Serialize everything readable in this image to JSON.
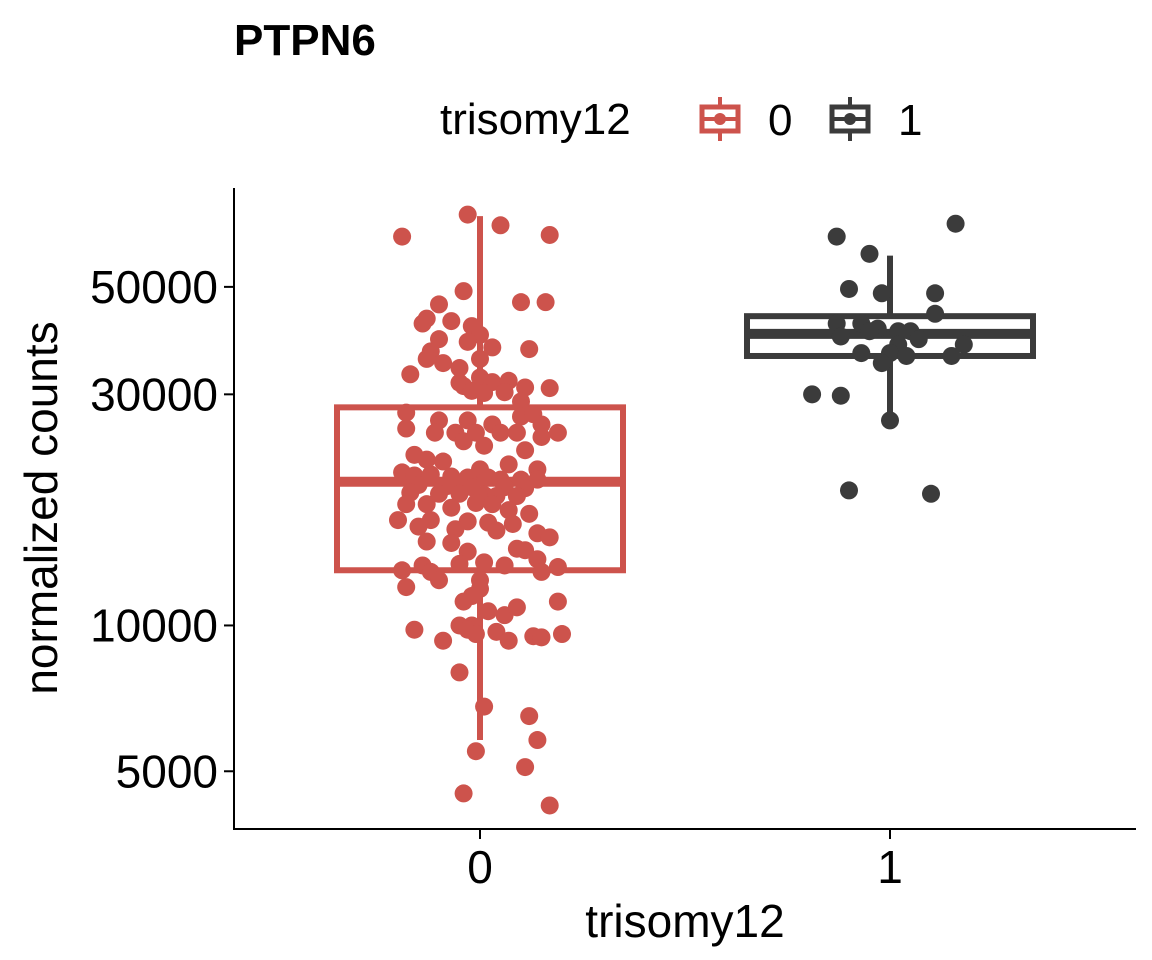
{
  "chart_data": {
    "type": "box",
    "title": "PTPN6",
    "xlabel": "trisomy12",
    "ylabel": "normalized counts",
    "y_scale": "log",
    "ylim": [
      3800,
      80000
    ],
    "yticks": [
      5000,
      10000,
      30000,
      50000
    ],
    "ytick_labels": [
      "5000",
      "10000",
      "30000",
      "50000"
    ],
    "categories": [
      "0",
      "1"
    ],
    "legend": {
      "title": "trisomy12",
      "position": "top",
      "entries": [
        {
          "label": "0",
          "color": "#cd534c"
        },
        {
          "label": "1",
          "color": "#3b3b3b"
        }
      ]
    },
    "grid": false,
    "series": [
      {
        "name": "0",
        "color": "#cd534c",
        "box": {
          "whisker_low": 5800,
          "q1": 13000,
          "median": 19800,
          "q3": 28200,
          "whisker_high": 70000
        },
        "points": [
          {
            "dx": -0.19,
            "y": 63500
          },
          {
            "dx": -0.03,
            "y": 70500
          },
          {
            "dx": 0.05,
            "y": 67000
          },
          {
            "dx": 0.17,
            "y": 64000
          },
          {
            "dx": -0.04,
            "y": 49000
          },
          {
            "dx": -0.1,
            "y": 46000
          },
          {
            "dx": 0.1,
            "y": 46500
          },
          {
            "dx": 0.16,
            "y": 46500
          },
          {
            "dx": -0.13,
            "y": 43000
          },
          {
            "dx": -0.14,
            "y": 42000
          },
          {
            "dx": -0.07,
            "y": 42500
          },
          {
            "dx": -0.02,
            "y": 41500
          },
          {
            "dx": 0.0,
            "y": 39800
          },
          {
            "dx": -0.1,
            "y": 39000
          },
          {
            "dx": -0.03,
            "y": 38500
          },
          {
            "dx": 0.03,
            "y": 37500
          },
          {
            "dx": -0.12,
            "y": 36800
          },
          {
            "dx": 0.12,
            "y": 37200
          },
          {
            "dx": -0.13,
            "y": 35500
          },
          {
            "dx": -0.09,
            "y": 34800
          },
          {
            "dx": 0.0,
            "y": 35500
          },
          {
            "dx": -0.05,
            "y": 34000
          },
          {
            "dx": -0.17,
            "y": 33000
          },
          {
            "dx": 0.0,
            "y": 32500
          },
          {
            "dx": -0.05,
            "y": 31700
          },
          {
            "dx": 0.03,
            "y": 31800
          },
          {
            "dx": 0.07,
            "y": 32000
          },
          {
            "dx": -0.04,
            "y": 31200
          },
          {
            "dx": 0.11,
            "y": 31000
          },
          {
            "dx": 0.17,
            "y": 30900
          },
          {
            "dx": -0.02,
            "y": 30500
          },
          {
            "dx": 0.06,
            "y": 30300
          },
          {
            "dx": 0.01,
            "y": 30200
          },
          {
            "dx": 0.1,
            "y": 29000
          },
          {
            "dx": -0.18,
            "y": 27500
          },
          {
            "dx": 0.1,
            "y": 27000
          },
          {
            "dx": 0.13,
            "y": 27300
          },
          {
            "dx": -0.1,
            "y": 26500
          },
          {
            "dx": -0.03,
            "y": 26500
          },
          {
            "dx": 0.03,
            "y": 26000
          },
          {
            "dx": 0.15,
            "y": 26000
          },
          {
            "dx": -0.18,
            "y": 25500
          },
          {
            "dx": -0.11,
            "y": 25000
          },
          {
            "dx": -0.06,
            "y": 25000
          },
          {
            "dx": -0.01,
            "y": 25000
          },
          {
            "dx": 0.05,
            "y": 25000
          },
          {
            "dx": 0.09,
            "y": 25000
          },
          {
            "dx": 0.19,
            "y": 25000
          },
          {
            "dx": 0.15,
            "y": 24500
          },
          {
            "dx": -0.04,
            "y": 24000
          },
          {
            "dx": 0.01,
            "y": 23500
          },
          {
            "dx": 0.11,
            "y": 23000
          },
          {
            "dx": -0.16,
            "y": 22500
          },
          {
            "dx": -0.13,
            "y": 22000
          },
          {
            "dx": -0.09,
            "y": 21800
          },
          {
            "dx": 0.07,
            "y": 21500
          },
          {
            "dx": 0.0,
            "y": 21000
          },
          {
            "dx": 0.14,
            "y": 21000
          },
          {
            "dx": -0.19,
            "y": 20700
          },
          {
            "dx": -0.16,
            "y": 20400
          },
          {
            "dx": -0.12,
            "y": 20500
          },
          {
            "dx": -0.07,
            "y": 20300
          },
          {
            "dx": -0.03,
            "y": 20200
          },
          {
            "dx": 0.02,
            "y": 20200
          },
          {
            "dx": 0.05,
            "y": 20000
          },
          {
            "dx": 0.1,
            "y": 20000
          },
          {
            "dx": 0.14,
            "y": 20000
          },
          {
            "dx": -0.15,
            "y": 19500
          },
          {
            "dx": -0.08,
            "y": 19400
          },
          {
            "dx": -0.02,
            "y": 19300
          },
          {
            "dx": 0.06,
            "y": 19300
          },
          {
            "dx": 0.11,
            "y": 19200
          },
          {
            "dx": -0.17,
            "y": 18800
          },
          {
            "dx": -0.1,
            "y": 18700
          },
          {
            "dx": -0.05,
            "y": 18700
          },
          {
            "dx": 0.01,
            "y": 18600
          },
          {
            "dx": 0.04,
            "y": 18500
          },
          {
            "dx": 0.09,
            "y": 18500
          },
          {
            "dx": -0.18,
            "y": 17800
          },
          {
            "dx": -0.13,
            "y": 17800
          },
          {
            "dx": -0.01,
            "y": 17900
          },
          {
            "dx": 0.03,
            "y": 17800
          },
          {
            "dx": -0.07,
            "y": 17500
          },
          {
            "dx": 0.07,
            "y": 17300
          },
          {
            "dx": 0.12,
            "y": 17000
          },
          {
            "dx": -0.2,
            "y": 16500
          },
          {
            "dx": -0.12,
            "y": 16500
          },
          {
            "dx": -0.03,
            "y": 16400
          },
          {
            "dx": 0.02,
            "y": 16300
          },
          {
            "dx": 0.08,
            "y": 16200
          },
          {
            "dx": -0.15,
            "y": 16000
          },
          {
            "dx": -0.06,
            "y": 15800
          },
          {
            "dx": 0.04,
            "y": 15700
          },
          {
            "dx": 0.14,
            "y": 15500
          },
          {
            "dx": 0.17,
            "y": 15200
          },
          {
            "dx": -0.13,
            "y": 14900
          },
          {
            "dx": -0.07,
            "y": 14800
          },
          {
            "dx": 0.09,
            "y": 14400
          },
          {
            "dx": 0.11,
            "y": 14300
          },
          {
            "dx": -0.03,
            "y": 14200
          },
          {
            "dx": 0.14,
            "y": 13700
          },
          {
            "dx": -0.05,
            "y": 13400
          },
          {
            "dx": -0.14,
            "y": 13300
          },
          {
            "dx": 0.01,
            "y": 13500
          },
          {
            "dx": 0.06,
            "y": 13300
          },
          {
            "dx": -0.19,
            "y": 13000
          },
          {
            "dx": -0.12,
            "y": 12900
          },
          {
            "dx": 0.19,
            "y": 13200
          },
          {
            "dx": 0.15,
            "y": 12900
          },
          {
            "dx": -0.1,
            "y": 12400
          },
          {
            "dx": 0.0,
            "y": 12400
          },
          {
            "dx": -0.18,
            "y": 12000
          },
          {
            "dx": 0.0,
            "y": 11900
          },
          {
            "dx": -0.02,
            "y": 11500
          },
          {
            "dx": -0.04,
            "y": 11200
          },
          {
            "dx": 0.19,
            "y": 11200
          },
          {
            "dx": 0.02,
            "y": 10700
          },
          {
            "dx": 0.06,
            "y": 10500
          },
          {
            "dx": 0.09,
            "y": 10900
          },
          {
            "dx": -0.05,
            "y": 10000
          },
          {
            "dx": -0.02,
            "y": 10000
          },
          {
            "dx": -0.16,
            "y": 9800
          },
          {
            "dx": -0.03,
            "y": 9800
          },
          {
            "dx": 0.04,
            "y": 9700
          },
          {
            "dx": -0.01,
            "y": 9600
          },
          {
            "dx": 0.13,
            "y": 9500
          },
          {
            "dx": 0.15,
            "y": 9450
          },
          {
            "dx": 0.2,
            "y": 9600
          },
          {
            "dx": -0.09,
            "y": 9300
          },
          {
            "dx": 0.07,
            "y": 9300
          },
          {
            "dx": -0.05,
            "y": 8000
          },
          {
            "dx": 0.01,
            "y": 6800
          },
          {
            "dx": 0.12,
            "y": 6500
          },
          {
            "dx": 0.14,
            "y": 5800
          },
          {
            "dx": -0.01,
            "y": 5500
          },
          {
            "dx": 0.11,
            "y": 5100
          },
          {
            "dx": -0.04,
            "y": 4500
          },
          {
            "dx": 0.17,
            "y": 4250
          }
        ]
      },
      {
        "name": "1",
        "color": "#3b3b3b",
        "box": {
          "whisker_low": 26500,
          "q1": 36000,
          "median": 40000,
          "q3": 43500,
          "whisker_high": 58000
        },
        "points": [
          {
            "dx": -0.13,
            "y": 63500
          },
          {
            "dx": 0.16,
            "y": 67500
          },
          {
            "dx": -0.05,
            "y": 58500
          },
          {
            "dx": -0.1,
            "y": 49500
          },
          {
            "dx": -0.02,
            "y": 48500
          },
          {
            "dx": 0.11,
            "y": 48500
          },
          {
            "dx": 0.11,
            "y": 44000
          },
          {
            "dx": -0.13,
            "y": 42000
          },
          {
            "dx": -0.07,
            "y": 42000
          },
          {
            "dx": -0.03,
            "y": 41000
          },
          {
            "dx": 0.02,
            "y": 40500
          },
          {
            "dx": 0.05,
            "y": 40500
          },
          {
            "dx": -0.05,
            "y": 40500
          },
          {
            "dx": -0.12,
            "y": 39500
          },
          {
            "dx": 0.02,
            "y": 38000
          },
          {
            "dx": 0.07,
            "y": 39000
          },
          {
            "dx": 0.18,
            "y": 38000
          },
          {
            "dx": -0.07,
            "y": 36500
          },
          {
            "dx": 0.0,
            "y": 36500
          },
          {
            "dx": 0.04,
            "y": 36000
          },
          {
            "dx": 0.15,
            "y": 36000
          },
          {
            "dx": -0.02,
            "y": 34800
          },
          {
            "dx": -0.19,
            "y": 30000
          },
          {
            "dx": -0.12,
            "y": 29800
          },
          {
            "dx": 0.0,
            "y": 26500
          },
          {
            "dx": -0.1,
            "y": 19000
          },
          {
            "dx": 0.1,
            "y": 18700
          }
        ]
      }
    ]
  }
}
